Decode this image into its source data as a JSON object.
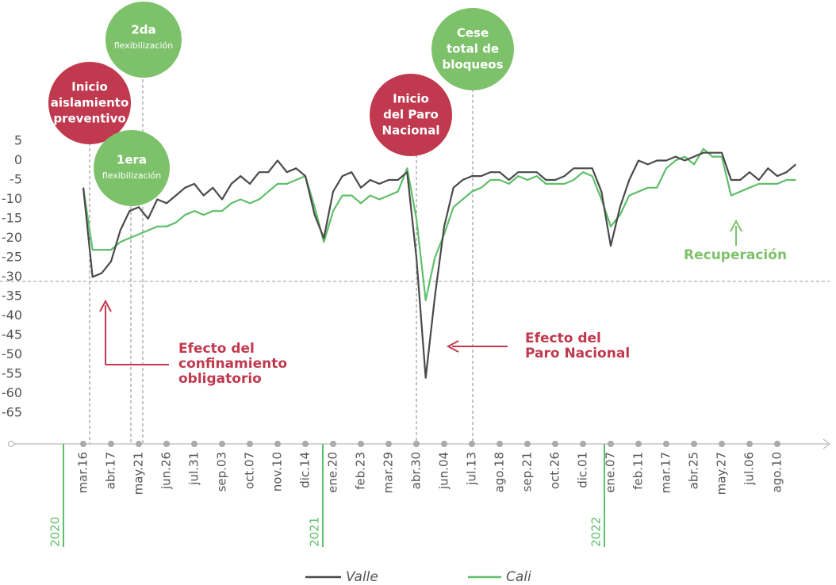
{
  "chart_data": {
    "type": "line",
    "categories": [
      "mar.16",
      null,
      null,
      "abr.17",
      null,
      null,
      "may.21",
      null,
      null,
      "jun.26",
      null,
      null,
      "jul.31",
      null,
      null,
      "sep.03",
      null,
      null,
      "oct.07",
      null,
      null,
      "nov.10",
      null,
      null,
      "dic.14",
      null,
      null,
      "ene.20",
      null,
      null,
      "feb.23",
      null,
      null,
      "mar.29",
      null,
      null,
      "abr.30",
      null,
      null,
      "jun.04",
      null,
      null,
      "jul.13",
      null,
      null,
      "ago.18",
      null,
      null,
      "sep.21",
      null,
      null,
      "oct.26",
      null,
      null,
      "dic.01",
      null,
      null,
      "ene.07",
      null,
      null,
      "feb.11",
      null,
      null,
      "mar.17",
      null,
      null,
      "abr.25",
      null,
      null,
      "may.27",
      null,
      null,
      "jul.06",
      null,
      null,
      "ago.10",
      null,
      null
    ],
    "series": [
      {
        "name": "Valle",
        "color": "#4a4a4a",
        "values": [
          -7,
          -30,
          -29,
          -26,
          -18,
          -13,
          -12,
          -15,
          -10,
          -11,
          -9,
          -7,
          -6,
          -9,
          -7,
          -10,
          -6,
          -4,
          -6,
          -3,
          -3,
          0,
          -3,
          -2,
          -4,
          -14,
          -20,
          -8,
          -4,
          -3,
          -7,
          -5,
          -6,
          -5,
          -5,
          -3,
          -25,
          -56,
          -35,
          -17,
          -7,
          -5,
          -4,
          -4,
          -3,
          -3,
          -5,
          -3,
          -3,
          -3,
          -5,
          -5,
          -4,
          -2,
          -2,
          -2,
          -8,
          -22,
          -12,
          -5,
          0,
          -1,
          0,
          0,
          1,
          0,
          1,
          2,
          2,
          2,
          -5,
          -5,
          -3,
          -5,
          -2,
          -4,
          -3,
          -1
        ]
      },
      {
        "name": "Cali",
        "color": "#5fbf6a",
        "values": [
          -7,
          -23,
          -23,
          -23,
          -21,
          -20,
          -19,
          -18,
          -17,
          -17,
          -16,
          -14,
          -13,
          -14,
          -13,
          -13,
          -11,
          -10,
          -11,
          -10,
          -8,
          -6,
          -6,
          -5,
          -4,
          -12,
          -21,
          -13,
          -9,
          -9,
          -11,
          -9,
          -10,
          -9,
          -8,
          -2,
          -15,
          -36,
          -25,
          -19,
          -12,
          -10,
          -8,
          -7,
          -5,
          -5,
          -6,
          -4,
          -5,
          -4,
          -6,
          -6,
          -6,
          -5,
          -3,
          -4,
          -10,
          -17,
          -14,
          -9,
          -8,
          -7,
          -7,
          -2,
          0,
          1,
          -1,
          3,
          1,
          1,
          -9,
          -8,
          -7,
          -6,
          -6,
          -6,
          -5,
          -5
        ]
      }
    ],
    "years": [
      "2020",
      "2021",
      "2022"
    ],
    "ylim": [
      -73,
      5
    ],
    "yticks": [
      5,
      0,
      -5,
      -10,
      -15,
      -20,
      -25,
      -30,
      -35,
      -40,
      -45,
      -50,
      -55,
      -60,
      -65
    ],
    "annotations": [
      {
        "lines": [
          "2da",
          "flexibilización"
        ]
      },
      {
        "lines": [
          "Inicio",
          "aislamiento",
          "preventivo"
        ]
      },
      {
        "lines": [
          "1era",
          "flexibilización"
        ]
      },
      {
        "lines": [
          "Inicio",
          "del Paro",
          "Nacional"
        ]
      },
      {
        "lines": [
          "Cese",
          "total de",
          "bloqueos"
        ]
      },
      {
        "lines": [
          "Efecto del",
          "confinamiento",
          "obligatorio"
        ]
      },
      {
        "lines": [
          "Efecto del",
          "Paro Nacional"
        ]
      },
      {
        "lines": [
          "Recuperación"
        ]
      }
    ]
  }
}
